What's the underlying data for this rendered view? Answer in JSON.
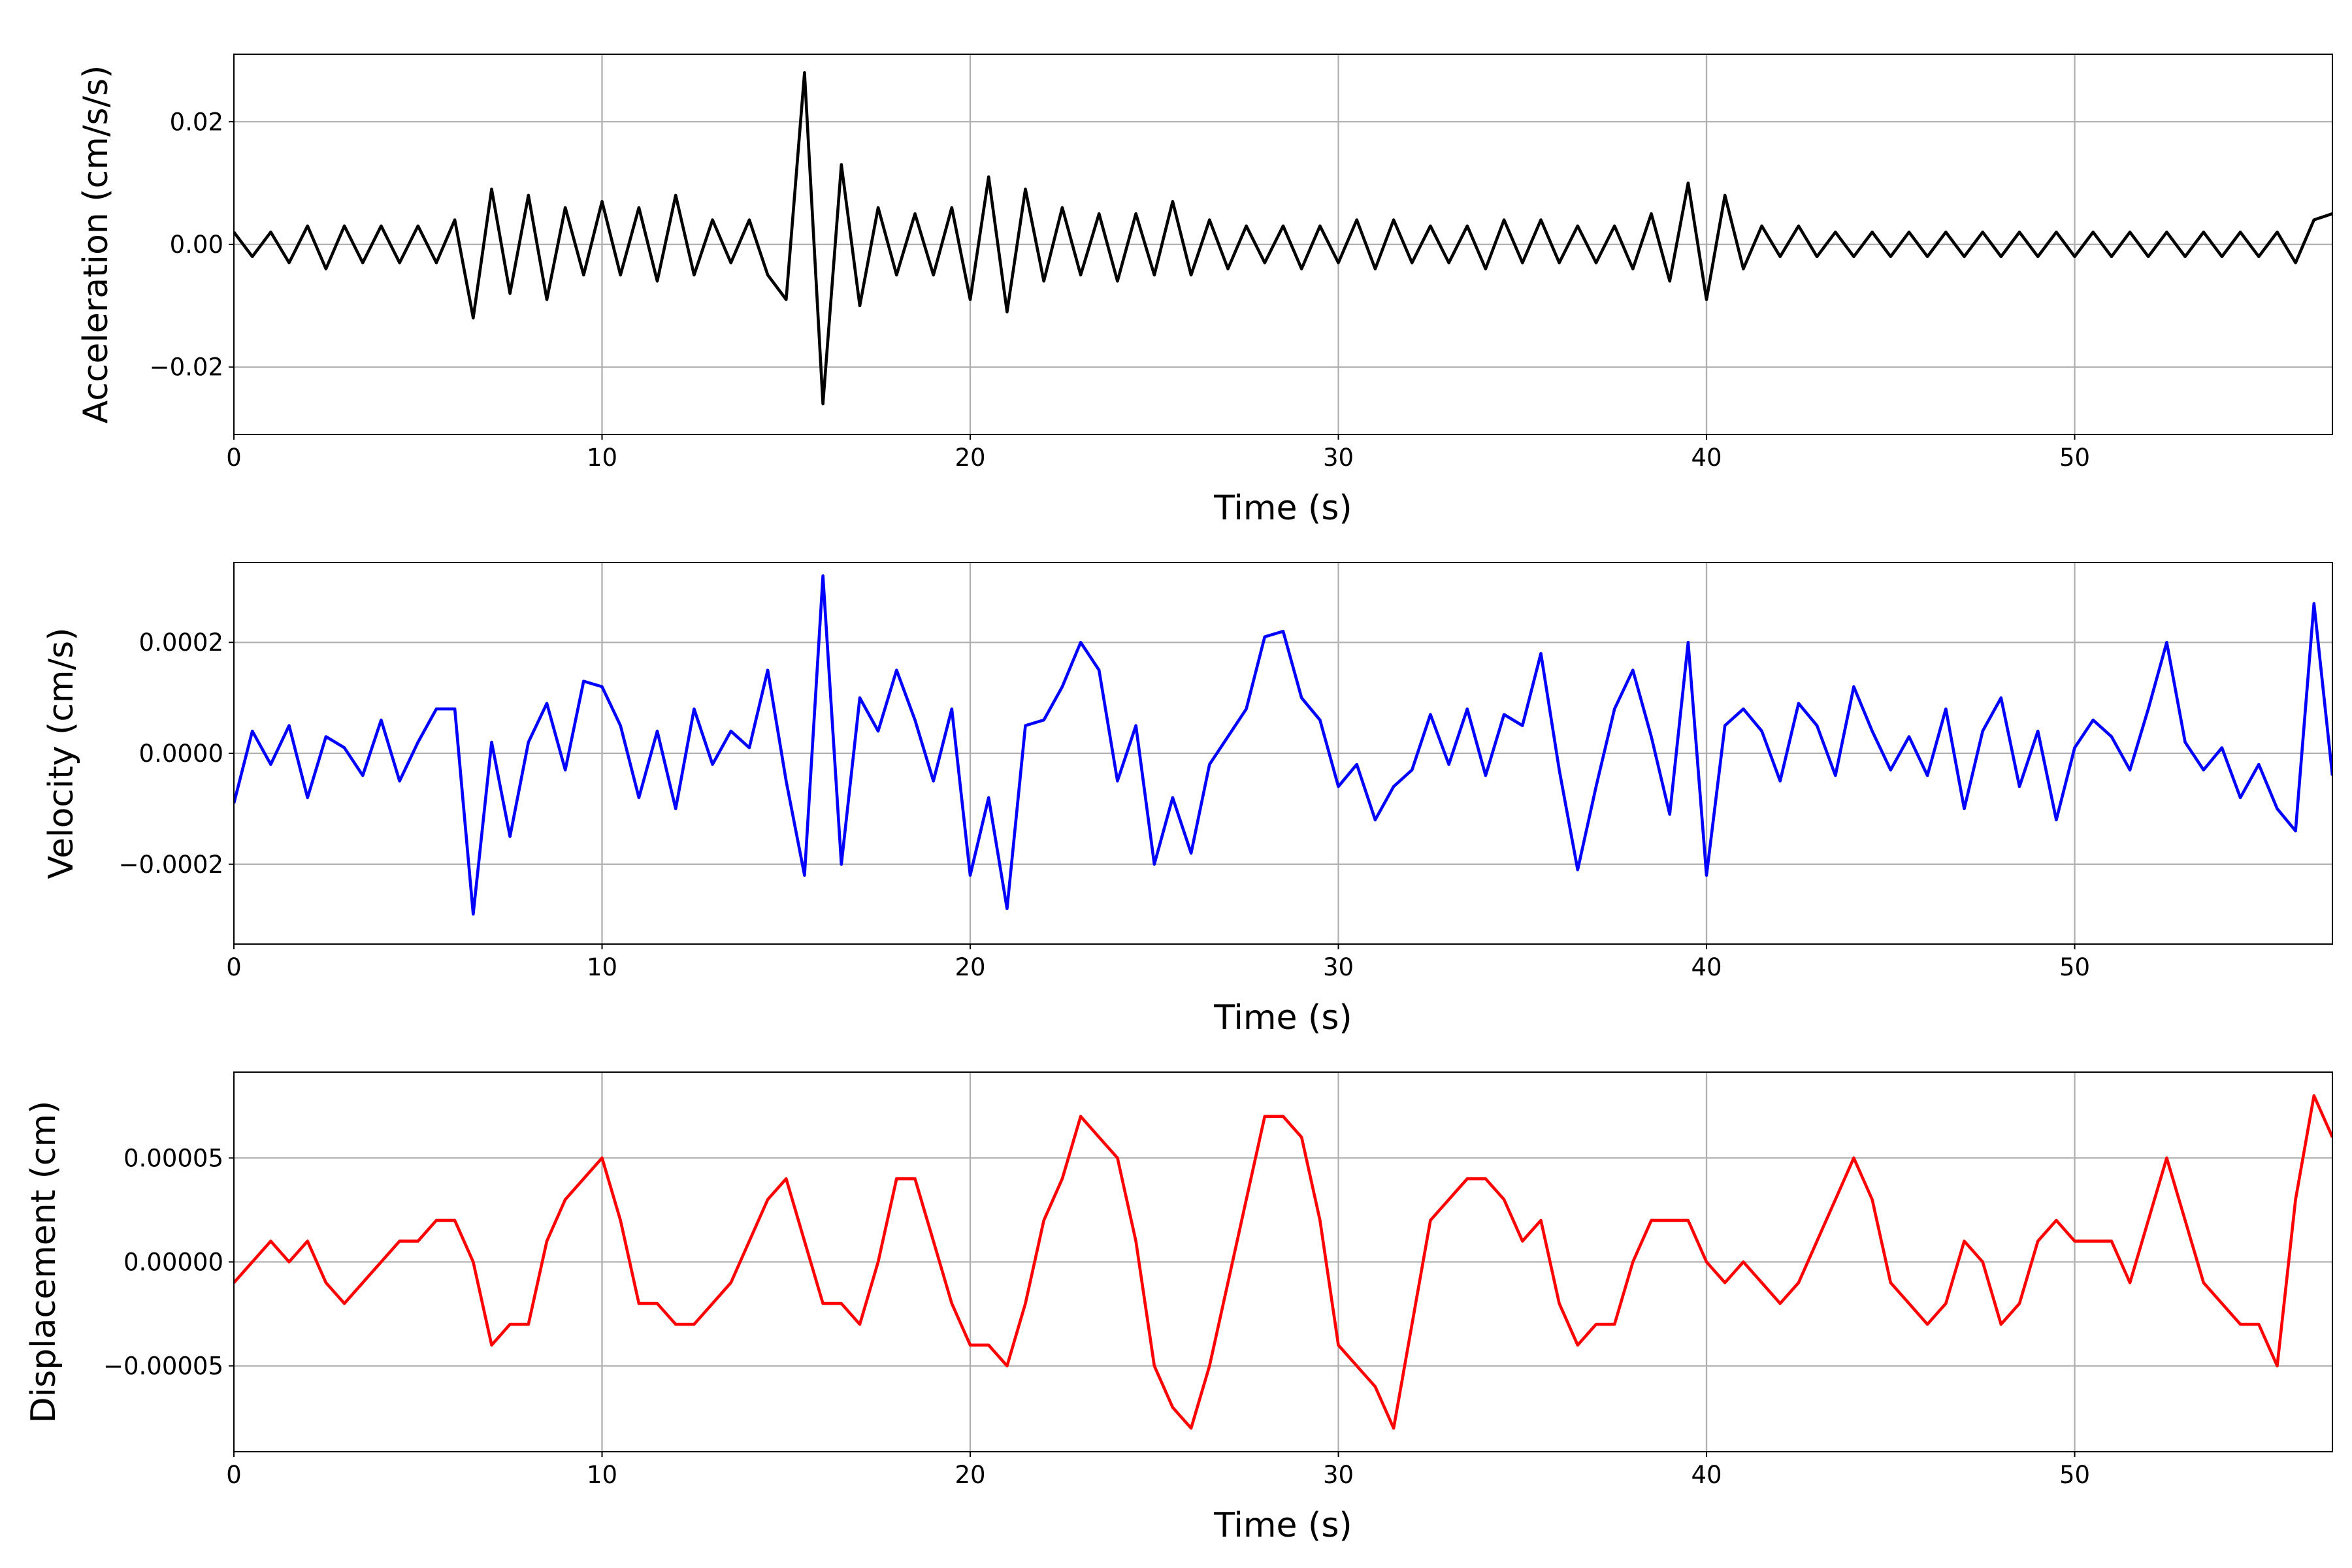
{
  "chart_data": [
    {
      "type": "line",
      "xlabel": "Time (s)",
      "ylabel": "Acceleration (cm/s/s)",
      "color": "#000000",
      "grid": true,
      "xlim": [
        0,
        57
      ],
      "ylim": [
        -0.031,
        0.031
      ],
      "xticks": [
        0,
        10,
        20,
        30,
        40,
        50
      ],
      "yticks": [
        {
          "value": -0.02,
          "label": "−0.02"
        },
        {
          "value": 0,
          "label": "0.00"
        },
        {
          "value": 0.02,
          "label": "0.02"
        }
      ],
      "x": [
        0,
        0.5,
        1,
        1.5,
        2,
        2.5,
        3,
        3.5,
        4,
        4.5,
        5,
        5.5,
        6,
        6.5,
        7,
        7.5,
        8,
        8.5,
        9,
        9.5,
        10,
        10.5,
        11,
        11.5,
        12,
        12.5,
        13,
        13.5,
        14,
        14.5,
        15,
        15.5,
        16,
        16.5,
        17,
        17.5,
        18,
        18.5,
        19,
        19.5,
        20,
        20.5,
        21,
        21.5,
        22,
        22.5,
        23,
        23.5,
        24,
        24.5,
        25,
        25.5,
        26,
        26.5,
        27,
        27.5,
        28,
        28.5,
        29,
        29.5,
        30,
        30.5,
        31,
        31.5,
        32,
        32.5,
        33,
        33.5,
        34,
        34.5,
        35,
        35.5,
        36,
        36.5,
        37,
        37.5,
        38,
        38.5,
        39,
        39.5,
        40,
        40.5,
        41,
        41.5,
        42,
        42.5,
        43,
        43.5,
        44,
        44.5,
        45,
        45.5,
        46,
        46.5,
        47,
        47.5,
        48,
        48.5,
        49,
        49.5,
        50,
        50.5,
        51,
        51.5,
        52,
        52.5,
        53,
        53.5,
        54,
        54.5,
        55,
        55.5,
        56,
        56.5,
        57
      ],
      "values": [
        0.002,
        -0.002,
        0.002,
        -0.003,
        0.003,
        -0.004,
        0.003,
        -0.003,
        0.003,
        -0.003,
        0.003,
        -0.003,
        0.004,
        -0.012,
        0.009,
        -0.008,
        0.008,
        -0.009,
        0.006,
        -0.005,
        0.007,
        -0.005,
        0.006,
        -0.006,
        0.008,
        -0.005,
        0.004,
        -0.003,
        0.004,
        -0.005,
        -0.009,
        0.028,
        -0.026,
        0.013,
        -0.01,
        0.006,
        -0.005,
        0.005,
        -0.005,
        0.006,
        -0.009,
        0.011,
        -0.011,
        0.009,
        -0.006,
        0.006,
        -0.005,
        0.005,
        -0.006,
        0.005,
        -0.005,
        0.007,
        -0.005,
        0.004,
        -0.004,
        0.003,
        -0.003,
        0.003,
        -0.004,
        0.003,
        -0.003,
        0.004,
        -0.004,
        0.004,
        -0.003,
        0.003,
        -0.003,
        0.003,
        -0.004,
        0.004,
        -0.003,
        0.004,
        -0.003,
        0.003,
        -0.003,
        0.003,
        -0.004,
        0.005,
        -0.006,
        0.01,
        -0.009,
        0.008,
        -0.004,
        0.003,
        -0.002,
        0.003,
        -0.002,
        0.002,
        -0.002,
        0.002,
        -0.002,
        0.002,
        -0.002,
        0.002,
        -0.002,
        0.002,
        -0.002,
        0.002,
        -0.002,
        0.002,
        -0.002,
        0.002,
        -0.002,
        0.002,
        -0.002,
        0.002,
        -0.002,
        0.002,
        -0.002,
        0.002,
        -0.002,
        0.002,
        -0.003,
        0.004,
        0.005
      ]
    },
    {
      "type": "line",
      "xlabel": "Time (s)",
      "ylabel": "Velocity (cm/s)",
      "color": "#0000ff",
      "grid": true,
      "xlim": [
        0,
        57
      ],
      "ylim": [
        -0.000344,
        0.000344
      ],
      "xticks": [
        0,
        10,
        20,
        30,
        40,
        50
      ],
      "yticks": [
        {
          "value": -0.0002,
          "label": "−0.0002"
        },
        {
          "value": 0,
          "label": "0.0000"
        },
        {
          "value": 0.0002,
          "label": "0.0002"
        }
      ],
      "x": [
        0,
        0.5,
        1,
        1.5,
        2,
        2.5,
        3,
        3.5,
        4,
        4.5,
        5,
        5.5,
        6,
        6.5,
        7,
        7.5,
        8,
        8.5,
        9,
        9.5,
        10,
        10.5,
        11,
        11.5,
        12,
        12.5,
        13,
        13.5,
        14,
        14.5,
        15,
        15.5,
        16,
        16.5,
        17,
        17.5,
        18,
        18.5,
        19,
        19.5,
        20,
        20.5,
        21,
        21.5,
        22,
        22.5,
        23,
        23.5,
        24,
        24.5,
        25,
        25.5,
        26,
        26.5,
        27,
        27.5,
        28,
        28.5,
        29,
        29.5,
        30,
        30.5,
        31,
        31.5,
        32,
        32.5,
        33,
        33.5,
        34,
        34.5,
        35,
        35.5,
        36,
        36.5,
        37,
        37.5,
        38,
        38.5,
        39,
        39.5,
        40,
        40.5,
        41,
        41.5,
        42,
        42.5,
        43,
        43.5,
        44,
        44.5,
        45,
        45.5,
        46,
        46.5,
        47,
        47.5,
        48,
        48.5,
        49,
        49.5,
        50,
        50.5,
        51,
        51.5,
        52,
        52.5,
        53,
        53.5,
        54,
        54.5,
        55,
        55.5,
        56,
        56.5,
        57
      ],
      "values": [
        -9e-05,
        4e-05,
        -2e-05,
        5e-05,
        -8e-05,
        3e-05,
        1e-05,
        -4e-05,
        6e-05,
        -5e-05,
        2e-05,
        8e-05,
        8e-05,
        -0.00029,
        2e-05,
        -0.00015,
        2e-05,
        9e-05,
        -3e-05,
        0.00013,
        0.00012,
        5e-05,
        -8e-05,
        4e-05,
        -0.0001,
        8e-05,
        -2e-05,
        4e-05,
        1e-05,
        0.00015,
        -5e-05,
        -0.00022,
        0.00032,
        -0.0002,
        0.0001,
        4e-05,
        0.00015,
        6e-05,
        -5e-05,
        8e-05,
        -0.00022,
        -8e-05,
        -0.00028,
        5e-05,
        6e-05,
        0.00012,
        0.0002,
        0.00015,
        -5e-05,
        5e-05,
        -0.0002,
        -8e-05,
        -0.00018,
        -2e-05,
        3e-05,
        8e-05,
        0.00021,
        0.00022,
        0.0001,
        6e-05,
        -6e-05,
        -2e-05,
        -0.00012,
        -6e-05,
        -3e-05,
        7e-05,
        -2e-05,
        8e-05,
        -4e-05,
        7e-05,
        5e-05,
        0.00018,
        -3e-05,
        -0.00021,
        -6e-05,
        8e-05,
        0.00015,
        3e-05,
        -0.00011,
        0.0002,
        -0.00022,
        5e-05,
        8e-05,
        4e-05,
        -5e-05,
        9e-05,
        5e-05,
        -4e-05,
        0.00012,
        4e-05,
        -3e-05,
        3e-05,
        -4e-05,
        8e-05,
        -0.0001,
        4e-05,
        0.0001,
        -6e-05,
        4e-05,
        -0.00012,
        1e-05,
        6e-05,
        3e-05,
        -3e-05,
        8e-05,
        0.0002,
        2e-05,
        -3e-05,
        1e-05,
        -8e-05,
        -2e-05,
        -0.0001,
        -0.00014,
        0.00027,
        -4e-05
      ]
    },
    {
      "type": "line",
      "xlabel": "Time (s)",
      "ylabel": "Displacement (cm)",
      "color": "#ff0000",
      "grid": true,
      "xlim": [
        0,
        57
      ],
      "ylim": [
        -9.13e-05,
        9.13e-05
      ],
      "xticks": [
        0,
        10,
        20,
        30,
        40,
        50
      ],
      "yticks": [
        {
          "value": -5e-05,
          "label": "−0.00005"
        },
        {
          "value": 0,
          "label": "0.00000"
        },
        {
          "value": 5e-05,
          "label": "0.00005"
        }
      ],
      "x": [
        0,
        0.5,
        1,
        1.5,
        2,
        2.5,
        3,
        3.5,
        4,
        4.5,
        5,
        5.5,
        6,
        6.5,
        7,
        7.5,
        8,
        8.5,
        9,
        9.5,
        10,
        10.5,
        11,
        11.5,
        12,
        12.5,
        13,
        13.5,
        14,
        14.5,
        15,
        15.5,
        16,
        16.5,
        17,
        17.5,
        18,
        18.5,
        19,
        19.5,
        20,
        20.5,
        21,
        21.5,
        22,
        22.5,
        23,
        23.5,
        24,
        24.5,
        25,
        25.5,
        26,
        26.5,
        27,
        27.5,
        28,
        28.5,
        29,
        29.5,
        30,
        30.5,
        31,
        31.5,
        32,
        32.5,
        33,
        33.5,
        34,
        34.5,
        35,
        35.5,
        36,
        36.5,
        37,
        37.5,
        38,
        38.5,
        39,
        39.5,
        40,
        40.5,
        41,
        41.5,
        42,
        42.5,
        43,
        43.5,
        44,
        44.5,
        45,
        45.5,
        46,
        46.5,
        47,
        47.5,
        48,
        48.5,
        49,
        49.5,
        50,
        50.5,
        51,
        51.5,
        52,
        52.5,
        53,
        53.5,
        54,
        54.5,
        55,
        55.5,
        56,
        56.5,
        57
      ],
      "values": [
        -1e-05,
        0,
        1e-05,
        0,
        1e-05,
        -1e-05,
        -2e-05,
        -1e-05,
        0,
        1e-05,
        1e-05,
        2e-05,
        2e-05,
        0,
        -4e-05,
        -3e-05,
        -3e-05,
        1e-05,
        3e-05,
        4e-05,
        5e-05,
        2e-05,
        -2e-05,
        -2e-05,
        -3e-05,
        -3e-05,
        -2e-05,
        -1e-05,
        1e-05,
        3e-05,
        4e-05,
        1e-05,
        -2e-05,
        -2e-05,
        -3e-05,
        0,
        4e-05,
        4e-05,
        1e-05,
        -2e-05,
        -4e-05,
        -4e-05,
        -5e-05,
        -2e-05,
        2e-05,
        4e-05,
        7e-05,
        6e-05,
        5e-05,
        1e-05,
        -5e-05,
        -7e-05,
        -8e-05,
        -5e-05,
        -1e-05,
        3e-05,
        7e-05,
        7e-05,
        6e-05,
        2e-05,
        -4e-05,
        -5e-05,
        -6e-05,
        -8e-05,
        -3e-05,
        2e-05,
        3e-05,
        4e-05,
        4e-05,
        3e-05,
        1e-05,
        2e-05,
        -2e-05,
        -4e-05,
        -3e-05,
        -3e-05,
        0,
        2e-05,
        2e-05,
        2e-05,
        0,
        -1e-05,
        0,
        -1e-05,
        -2e-05,
        -1e-05,
        1e-05,
        3e-05,
        5e-05,
        3e-05,
        -1e-05,
        -2e-05,
        -3e-05,
        -2e-05,
        1e-05,
        0,
        -3e-05,
        -2e-05,
        1e-05,
        2e-05,
        1e-05,
        1e-05,
        1e-05,
        -1e-05,
        2e-05,
        5e-05,
        2e-05,
        -1e-05,
        -2e-05,
        -3e-05,
        -3e-05,
        -5e-05,
        3e-05,
        8e-05,
        6e-05
      ]
    }
  ]
}
